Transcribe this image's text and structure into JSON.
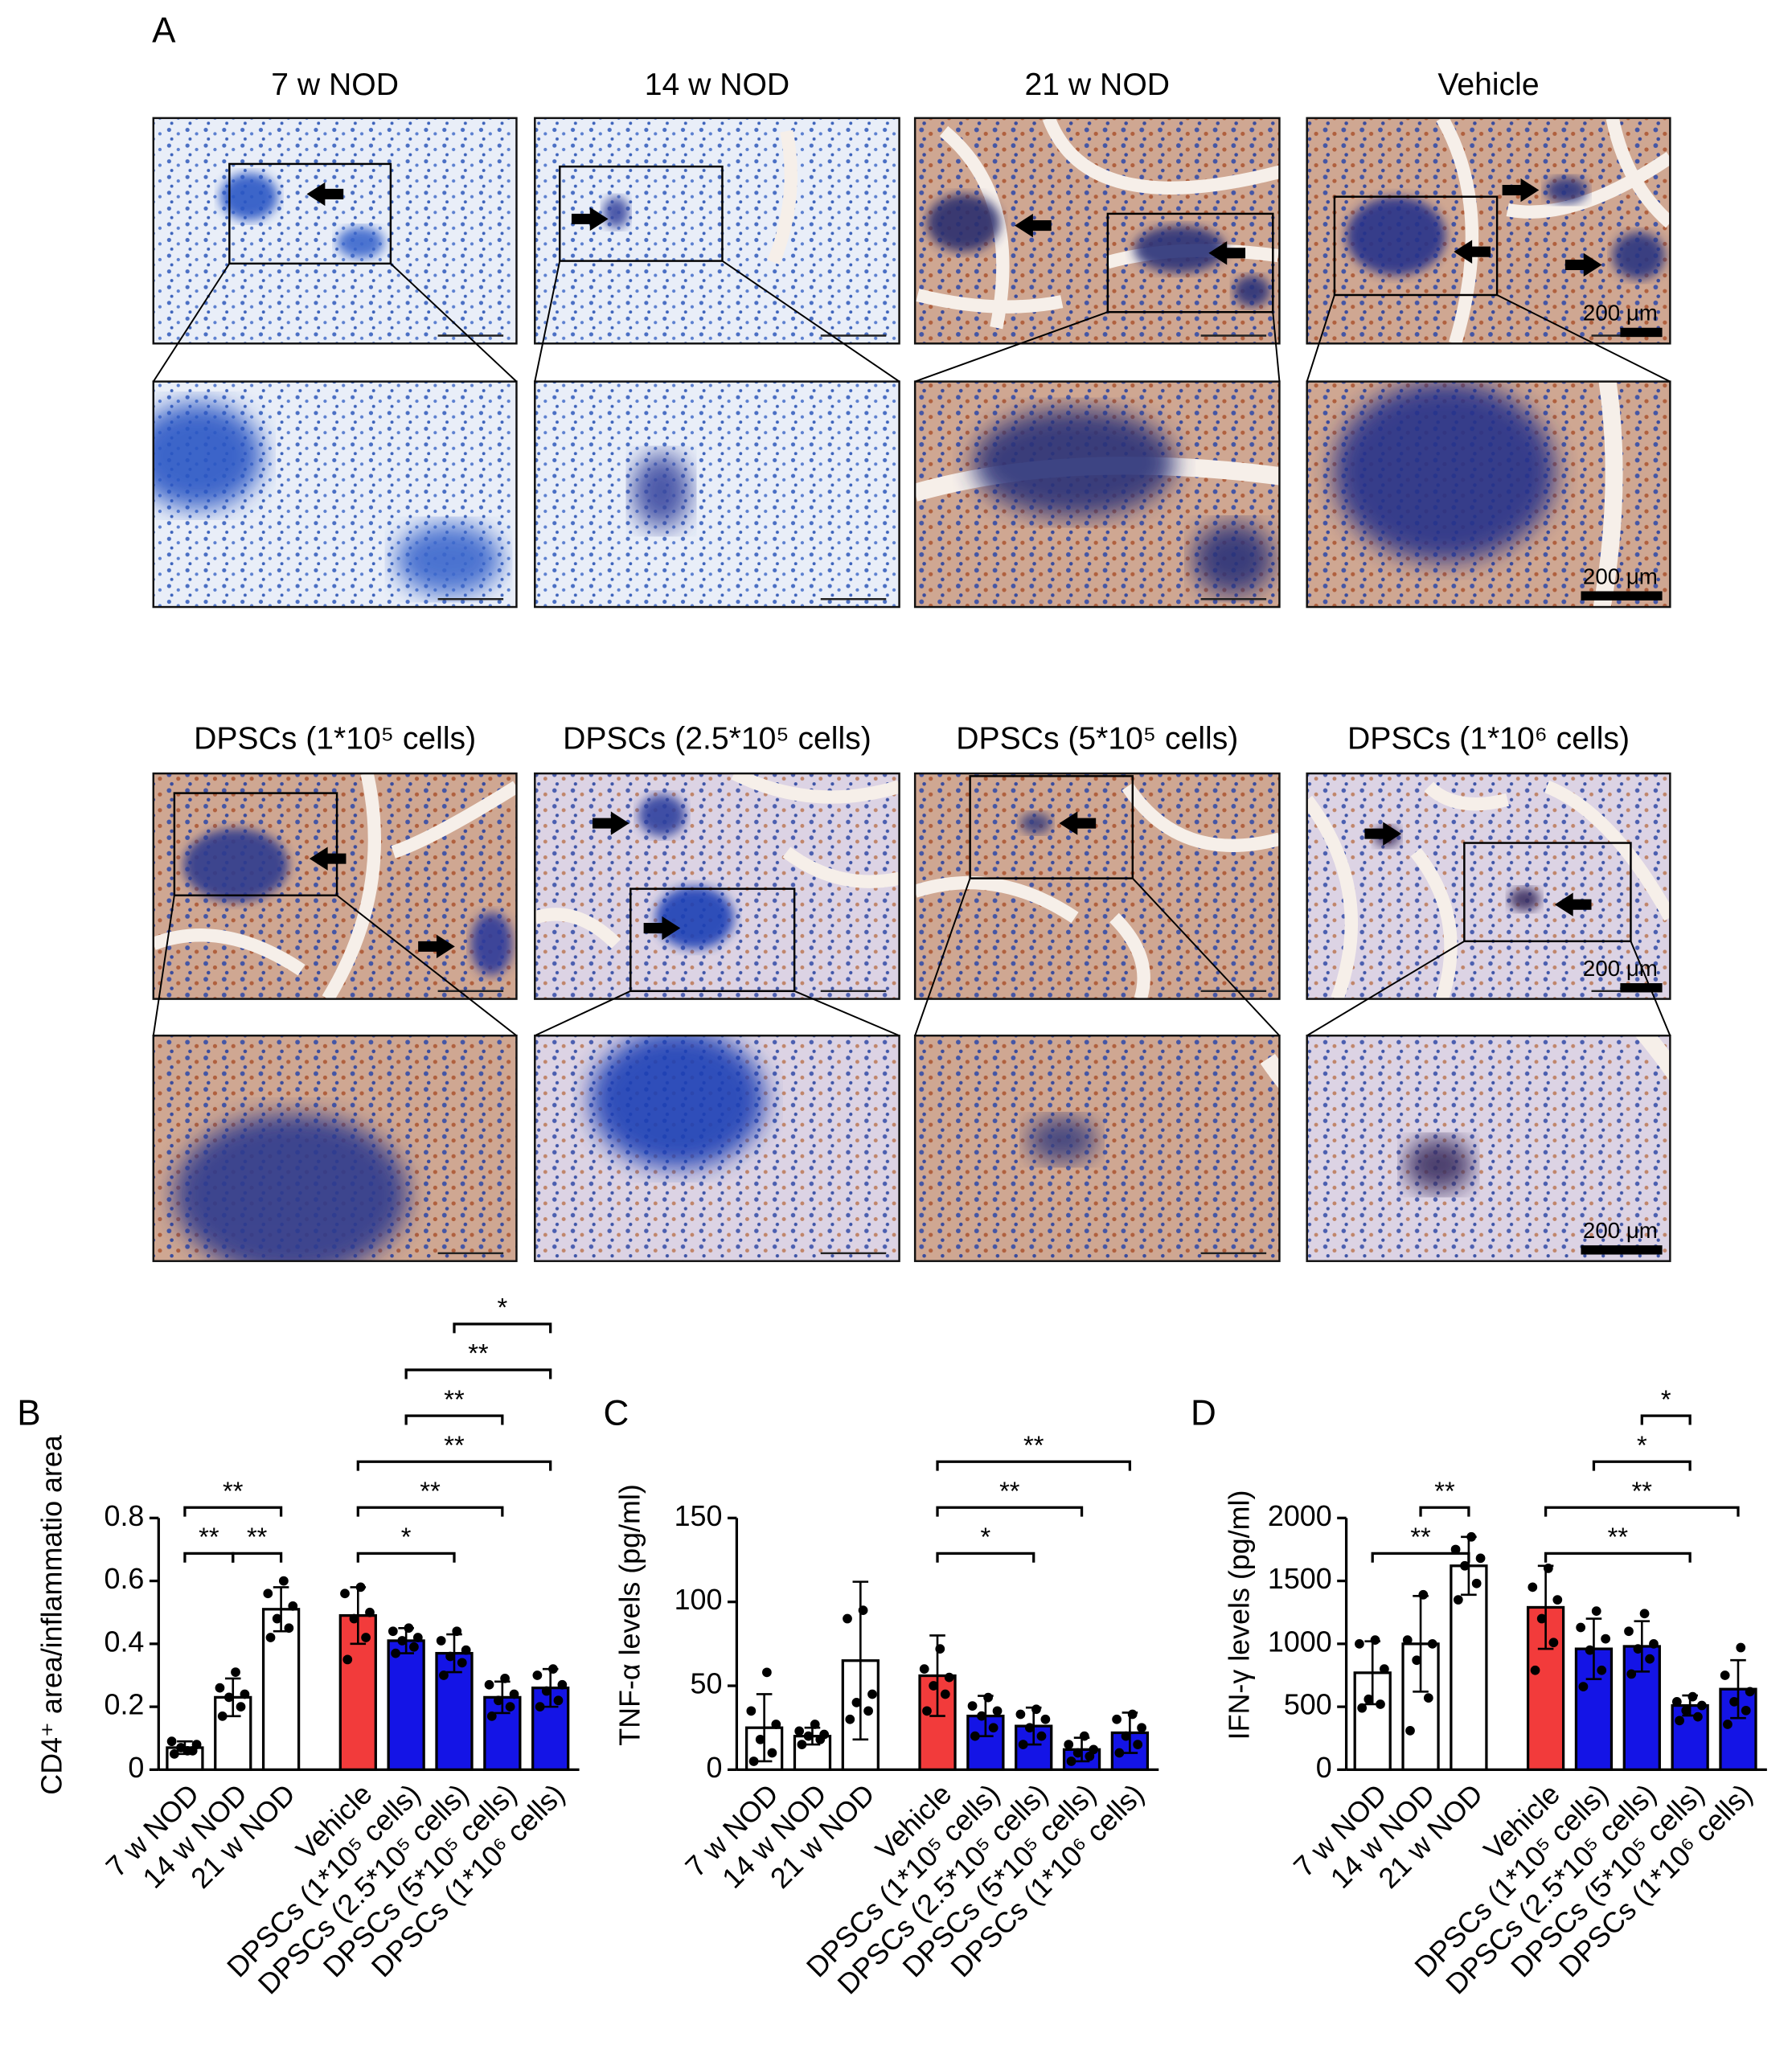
{
  "figure": {
    "panel_labels": [
      "A",
      "B",
      "C",
      "D"
    ],
    "micrograph_groups": [
      {
        "titles": [
          "7 w NOD",
          "14 w NOD",
          "21 w NOD",
          "Vehicle"
        ],
        "scale_bar_labels": [
          "200 μm",
          "200 μm"
        ]
      },
      {
        "titles": [
          "DPSCs (1*10⁵ cells)",
          "DPSCs (2.5*10⁵ cells)",
          "DPSCs (5*10⁵ cells)",
          "DPSCs (1*10⁶ cells)"
        ],
        "scale_bar_labels": [
          "200 μm",
          "200 μm"
        ]
      }
    ]
  },
  "chart_data": [
    {
      "type": "bar",
      "y_label": "CD4⁺ area/inflammatio area",
      "categories": [
        "7 w NOD",
        "14 w NOD",
        "21 w NOD",
        "Vehicle",
        "DPSCs (1*10⁵ cells)",
        "DPSCs (2.5*10⁵ cells)",
        "DPSCs (5*10⁵ cells)",
        "DPSCs (1*10⁶ cells)"
      ],
      "values": [
        0.07,
        0.23,
        0.51,
        0.49,
        0.41,
        0.37,
        0.23,
        0.26
      ],
      "errors": [
        0.02,
        0.06,
        0.07,
        0.09,
        0.04,
        0.06,
        0.05,
        0.06
      ],
      "points": [
        [
          0.05,
          0.06,
          0.07,
          0.08,
          0.09,
          0.06
        ],
        [
          0.17,
          0.2,
          0.23,
          0.24,
          0.26,
          0.31
        ],
        [
          0.42,
          0.45,
          0.48,
          0.52,
          0.56,
          0.6
        ],
        [
          0.35,
          0.42,
          0.48,
          0.5,
          0.56,
          0.58
        ],
        [
          0.37,
          0.39,
          0.41,
          0.42,
          0.44,
          0.45
        ],
        [
          0.3,
          0.34,
          0.36,
          0.38,
          0.41,
          0.44
        ],
        [
          0.17,
          0.2,
          0.22,
          0.24,
          0.27,
          0.29
        ],
        [
          0.2,
          0.22,
          0.25,
          0.27,
          0.3,
          0.32
        ]
      ],
      "colors": [
        "#ffffff",
        "#ffffff",
        "#ffffff",
        "#f23b3b",
        "#1414e6",
        "#1414e6",
        "#1414e6",
        "#1414e6"
      ],
      "ylim": [
        0,
        0.8
      ],
      "yticks": [
        0,
        0.2,
        0.4,
        0.6,
        0.8
      ],
      "comparisons": [
        {
          "label": "**",
          "between": [
            0,
            1
          ]
        },
        {
          "label": "**",
          "between": [
            1,
            2
          ]
        },
        {
          "label": "**",
          "between": [
            0,
            2
          ]
        },
        {
          "label": "*",
          "between": [
            3,
            5
          ]
        },
        {
          "label": "**",
          "between": [
            3,
            6
          ]
        },
        {
          "label": "**",
          "between": [
            3,
            7
          ]
        },
        {
          "label": "**",
          "between": [
            4,
            6
          ]
        },
        {
          "label": "**",
          "between": [
            4,
            7
          ]
        },
        {
          "label": "*",
          "between": [
            5,
            7
          ]
        }
      ]
    },
    {
      "type": "bar",
      "y_label": "TNF-α levels (pg/ml)",
      "categories": [
        "7 w NOD",
        "14 w NOD",
        "21 w NOD",
        "Vehicle",
        "DPSCs (1*10⁵ cells)",
        "DPSCs (2.5*10⁵ cells)",
        "DPSCs (5*10⁵ cells)",
        "DPSCs (1*10⁶ cells)"
      ],
      "values": [
        25,
        20,
        65,
        56,
        32,
        26,
        12,
        22
      ],
      "errors": [
        20,
        5,
        47,
        24,
        12,
        11,
        7,
        12
      ],
      "points": [
        [
          5,
          10,
          18,
          27,
          35,
          58
        ],
        [
          15,
          18,
          20,
          21,
          23,
          27
        ],
        [
          30,
          35,
          40,
          45,
          90,
          95
        ],
        [
          35,
          45,
          50,
          55,
          60,
          72
        ],
        [
          20,
          25,
          32,
          35,
          38,
          43
        ],
        [
          15,
          20,
          25,
          30,
          33,
          36
        ],
        [
          5,
          8,
          10,
          12,
          15,
          20
        ],
        [
          10,
          15,
          20,
          25,
          30,
          33
        ]
      ],
      "colors": [
        "#ffffff",
        "#ffffff",
        "#ffffff",
        "#f23b3b",
        "#1414e6",
        "#1414e6",
        "#1414e6",
        "#1414e6"
      ],
      "ylim": [
        0,
        150
      ],
      "yticks": [
        0,
        50,
        100,
        150
      ],
      "comparisons": [
        {
          "label": "*",
          "between": [
            3,
            5
          ]
        },
        {
          "label": "**",
          "between": [
            3,
            6
          ]
        },
        {
          "label": "**",
          "between": [
            3,
            7
          ]
        }
      ]
    },
    {
      "type": "bar",
      "y_label": "IFN-γ levels (pg/ml)",
      "categories": [
        "7 w NOD",
        "14 w NOD",
        "21 w NOD",
        "Vehicle",
        "DPSCs (1*10⁵ cells)",
        "DPSCs (2.5*10⁵ cells)",
        "DPSCs (5*10⁵ cells)",
        "DPSCs (1*10⁶ cells)"
      ],
      "values": [
        770,
        1000,
        1620,
        1290,
        960,
        980,
        510,
        640
      ],
      "errors": [
        250,
        380,
        230,
        330,
        240,
        200,
        80,
        230
      ],
      "points": [
        [
          490,
          520,
          560,
          800,
          1000,
          1030
        ],
        [
          310,
          570,
          870,
          1000,
          1030,
          1390
        ],
        [
          1350,
          1480,
          1620,
          1680,
          1750,
          1850
        ],
        [
          790,
          1010,
          1200,
          1350,
          1450,
          1600
        ],
        [
          660,
          790,
          950,
          1040,
          1130,
          1260
        ],
        [
          760,
          880,
          960,
          1000,
          1100,
          1240
        ],
        [
          390,
          420,
          470,
          510,
          540,
          580
        ],
        [
          360,
          470,
          540,
          620,
          750,
          970
        ]
      ],
      "colors": [
        "#ffffff",
        "#ffffff",
        "#ffffff",
        "#f23b3b",
        "#1414e6",
        "#1414e6",
        "#1414e6",
        "#1414e6"
      ],
      "ylim": [
        0,
        2000
      ],
      "yticks": [
        0,
        500,
        1000,
        1500,
        2000
      ],
      "comparisons": [
        {
          "label": "**",
          "between": [
            0,
            2
          ]
        },
        {
          "label": "**",
          "between": [
            1,
            2
          ]
        },
        {
          "label": "**",
          "between": [
            3,
            6
          ]
        },
        {
          "label": "**",
          "between": [
            3,
            7
          ]
        },
        {
          "label": "*",
          "between": [
            4,
            6
          ]
        },
        {
          "label": "*",
          "between": [
            5,
            6
          ]
        }
      ]
    }
  ]
}
